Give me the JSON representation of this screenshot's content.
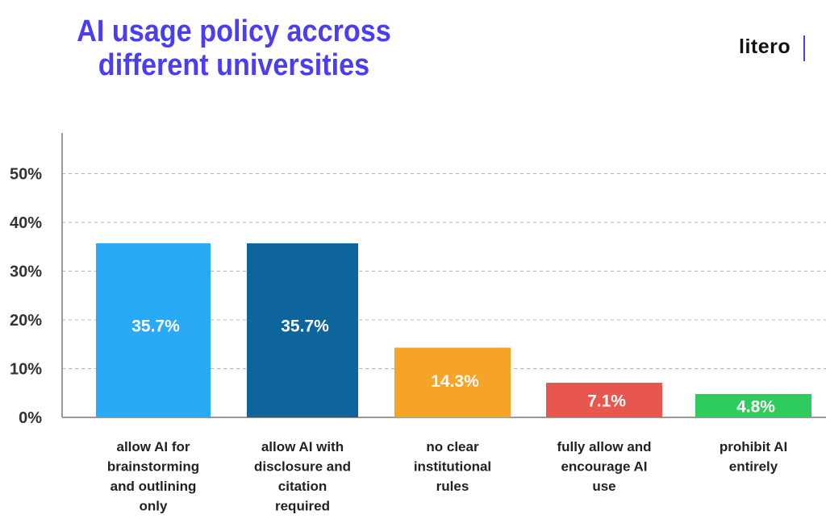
{
  "brand": {
    "name": "litero",
    "accent": "#4a3df2"
  },
  "chart_data": {
    "type": "bar",
    "title": "AI usage policy accross different universities",
    "title_lines": [
      "AI usage policy accross",
      "different universities"
    ],
    "xlabel": "",
    "ylabel": "",
    "ylim": [
      0,
      58
    ],
    "yticks": [
      {
        "value": 0,
        "label": "0%"
      },
      {
        "value": 10,
        "label": "10%"
      },
      {
        "value": 20,
        "label": "20%"
      },
      {
        "value": 30,
        "label": "30%"
      },
      {
        "value": 40,
        "label": "40%"
      },
      {
        "value": 50,
        "label": "50%"
      }
    ],
    "grid": true,
    "categories": [
      "allow AI for brainstorming and outlining only",
      "allow AI with disclosure and citation required",
      "no clear institutional rules",
      "fully allow and encourage AI use",
      "prohibit AI entirely"
    ],
    "category_lines": [
      [
        "allow AI for",
        "brainstorming",
        "and outlining",
        "only"
      ],
      [
        "allow AI with",
        "disclosure and",
        "citation",
        "required"
      ],
      [
        "no clear",
        "institutional",
        "rules"
      ],
      [
        "fully allow and",
        "encourage AI",
        "use"
      ],
      [
        "prohibit AI",
        "entirely"
      ]
    ],
    "values": [
      35.7,
      35.7,
      14.3,
      7.1,
      4.8
    ],
    "labels": [
      "35.7%",
      "35.7%",
      "14.3%",
      "7.1%",
      "4.8%"
    ],
    "colors": [
      "#2aa9f7",
      "#0e659b",
      "#f6a32a",
      "#e8574f",
      "#2ecc5f"
    ]
  }
}
